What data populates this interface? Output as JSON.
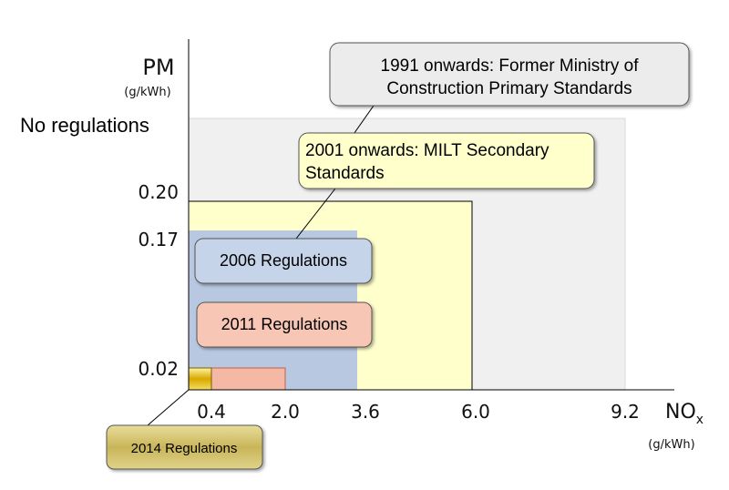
{
  "chart_data": {
    "type": "area",
    "title": "",
    "axes": {
      "y": {
        "label": "PM",
        "unit": "(g/kWh)",
        "ticks": [
          "No regulations",
          "0.20",
          "0.17",
          "0.02"
        ]
      },
      "x": {
        "label": "NO",
        "label_subscript": "x",
        "unit": "(g/kWh)",
        "ticks": [
          "0.4",
          "2.0",
          "3.6",
          "6.0",
          "9.2"
        ]
      }
    },
    "grid": false,
    "regions": [
      {
        "name": "1991 onwards: Former Ministry of Construction Primary Standards",
        "nox_max": 9.2,
        "pm_max": "No regulations",
        "color": "#f0f0f0"
      },
      {
        "name": "2001 onwards: MILT Secondary Standards",
        "nox_max": 6.0,
        "pm_max": 0.2,
        "color": "#ffffcc"
      },
      {
        "name": "2006 Regulations",
        "nox_max": 3.6,
        "pm_max": 0.17,
        "color": "#b8c8e0"
      },
      {
        "name": "2011 Regulations",
        "nox_max": 2.0,
        "pm_max": 0.02,
        "color": "#f4b8a4"
      },
      {
        "name": "2014 Regulations",
        "nox_max": 0.4,
        "pm_max": 0.02,
        "color": "#e8c020"
      }
    ],
    "callouts": {
      "r1991": [
        "1991 onwards: Former Ministry of",
        "Construction Primary Standards"
      ],
      "r2001": [
        "2001 onwards: MILT Secondary",
        "Standards"
      ],
      "r2006": [
        "2006 Regulations"
      ],
      "r2011": [
        "2011 Regulations"
      ],
      "r2014": [
        "2014 Regulations"
      ]
    },
    "callout_colors": {
      "r1991": "#ececec",
      "r2001": "#ffffcc",
      "r2006": "#c6d4ea",
      "r2011": "#f8c6b4",
      "r2014": "#d2c47a"
    }
  }
}
